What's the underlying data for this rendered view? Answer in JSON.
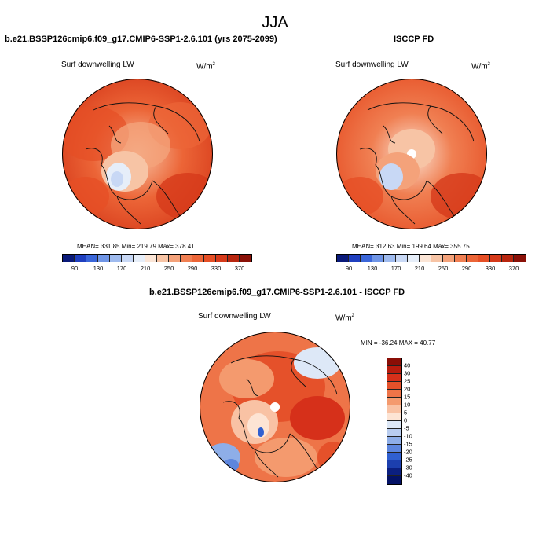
{
  "title": "JJA",
  "panels": [
    {
      "title": "b.e21.BSSP126cmip6.f09_g17.CMIP6-SSP1-2.6.101 (yrs 2075-2099)",
      "variable": "Surf downwelling LW",
      "units_base": "W/m",
      "units_exp": "2",
      "stats": "MEAN= 331.85  Min= 219.79  Max= 378.41",
      "colorbar_ticks": [
        "90",
        "130",
        "170",
        "210",
        "250",
        "290",
        "330",
        "370"
      ]
    },
    {
      "title": "ISCCP FD",
      "variable": "Surf downwelling LW",
      "units_base": "W/m",
      "units_exp": "2",
      "stats": "MEAN= 312.63  Min= 199.64  Max= 355.75",
      "colorbar_ticks": [
        "90",
        "130",
        "170",
        "210",
        "250",
        "290",
        "330",
        "370"
      ]
    }
  ],
  "diff_panel": {
    "title": "b.e21.BSSP126cmip6.f09_g17.CMIP6-SSP1-2.6.101 - ISCCP FD",
    "variable": "Surf downwelling LW",
    "units_base": "W/m",
    "units_exp": "2",
    "stats": "MIN = -36.24 MAX =  40.77",
    "colorbar_ticks": [
      "40",
      "30",
      "25",
      "20",
      "15",
      "10",
      "5",
      "0",
      "-5",
      "-10",
      "-15",
      "-20",
      "-25",
      "-30",
      "-40"
    ]
  },
  "colors": {
    "abs_scale": [
      "#0a1a7a",
      "#1f3fbf",
      "#3a66d9",
      "#6f95e6",
      "#9fbbef",
      "#c8d8f5",
      "#e6eef9",
      "#fbe5d6",
      "#f7c4a5",
      "#f4a27a",
      "#f07f52",
      "#ec6537",
      "#e64f25",
      "#d63a1a",
      "#b8260f",
      "#8a1108"
    ],
    "diff_scale": [
      "#8a0e06",
      "#b81c0e",
      "#d6301a",
      "#e5512a",
      "#ee7448",
      "#f49a6e",
      "#f9c2a4",
      "#fde4d4",
      "#dde8f7",
      "#b9cdf0",
      "#8eaee8",
      "#5d86de",
      "#3060d0",
      "#1c3fae",
      "#0b1f80",
      "#041266"
    ]
  }
}
